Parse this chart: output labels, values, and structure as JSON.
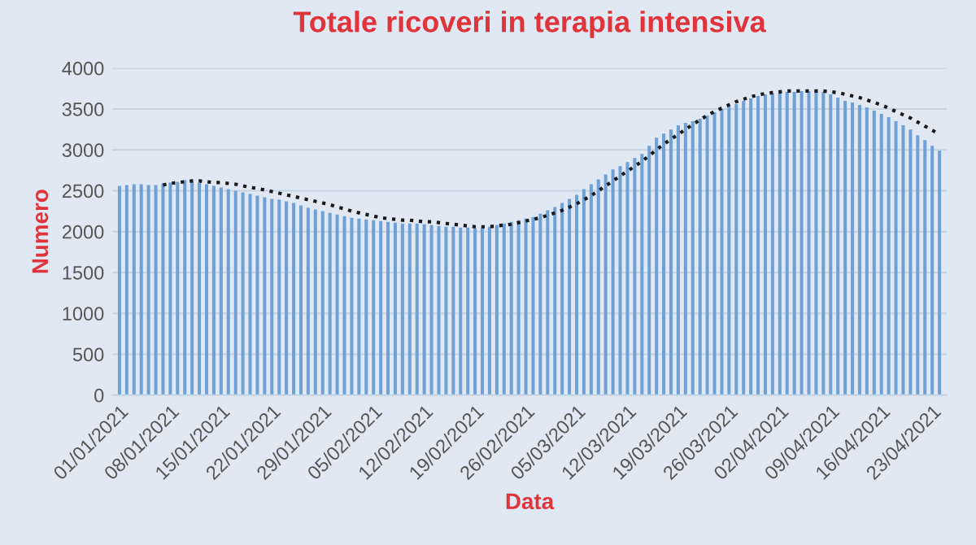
{
  "chart_data": {
    "type": "bar",
    "title": "Totale ricoveri in terapia intensiva",
    "xlabel": "Data",
    "ylabel": "Numero",
    "categories": [
      "01/01/2021",
      null,
      null,
      null,
      null,
      null,
      null,
      "08/01/2021",
      null,
      null,
      null,
      null,
      null,
      null,
      "15/01/2021",
      null,
      null,
      null,
      null,
      null,
      null,
      "22/01/2021",
      null,
      null,
      null,
      null,
      null,
      null,
      "29/01/2021",
      null,
      null,
      null,
      null,
      null,
      null,
      "05/02/2021",
      null,
      null,
      null,
      null,
      null,
      null,
      "12/02/2021",
      null,
      null,
      null,
      null,
      null,
      null,
      "19/02/2021",
      null,
      null,
      null,
      null,
      null,
      null,
      "26/02/2021",
      null,
      null,
      null,
      null,
      null,
      null,
      "05/03/2021",
      null,
      null,
      null,
      null,
      null,
      null,
      "12/03/2021",
      null,
      null,
      null,
      null,
      null,
      null,
      "19/03/2021",
      null,
      null,
      null,
      null,
      null,
      null,
      "26/03/2021",
      null,
      null,
      null,
      null,
      null,
      null,
      "02/04/2021",
      null,
      null,
      null,
      null,
      null,
      null,
      "09/04/2021",
      null,
      null,
      null,
      null,
      null,
      null,
      "16/04/2021",
      null,
      null,
      null,
      null,
      null,
      null,
      "23/04/2021",
      null
    ],
    "series": [
      {
        "color": "#6fa0d6",
        "values": [
          2560,
          2570,
          2580,
          2580,
          2570,
          2570,
          2590,
          2600,
          2610,
          2630,
          2620,
          2600,
          2580,
          2560,
          2540,
          2520,
          2500,
          2480,
          2460,
          2440,
          2420,
          2400,
          2390,
          2370,
          2350,
          2320,
          2290,
          2270,
          2250,
          2230,
          2210,
          2190,
          2170,
          2160,
          2150,
          2140,
          2130,
          2120,
          2110,
          2100,
          2100,
          2100,
          2090,
          2080,
          2070,
          2060,
          2060,
          2050,
          2050,
          2040,
          2050,
          2060,
          2080,
          2100,
          2120,
          2140,
          2160,
          2180,
          2220,
          2260,
          2300,
          2350,
          2400,
          2450,
          2520,
          2580,
          2640,
          2700,
          2760,
          2800,
          2850,
          2900,
          2950,
          3050,
          3150,
          3200,
          3250,
          3300,
          3330,
          3350,
          3380,
          3420,
          3460,
          3500,
          3530,
          3560,
          3600,
          3630,
          3660,
          3680,
          3690,
          3700,
          3710,
          3710,
          3720,
          3720,
          3720,
          3710,
          3680,
          3640,
          3600,
          3580,
          3550,
          3520,
          3480,
          3440,
          3400,
          3350,
          3300,
          3250,
          3180,
          3120,
          3050,
          2990
        ]
      },
      {
        "type": "line",
        "color": "#1a1a1a",
        "line_style": "dotted",
        "values": [
          null,
          null,
          null,
          null,
          null,
          null,
          2570,
          2590,
          2600,
          2610,
          2620,
          2620,
          2610,
          2600,
          2600,
          2590,
          2580,
          2560,
          2540,
          2530,
          2510,
          2490,
          2470,
          2450,
          2430,
          2410,
          2390,
          2370,
          2350,
          2330,
          2300,
          2280,
          2250,
          2230,
          2210,
          2190,
          2170,
          2160,
          2150,
          2140,
          2140,
          2130,
          2120,
          2120,
          2110,
          2100,
          2090,
          2080,
          2070,
          2060,
          2060,
          2060,
          2070,
          2080,
          2090,
          2110,
          2130,
          2150,
          2170,
          2200,
          2230,
          2260,
          2300,
          2340,
          2390,
          2440,
          2500,
          2560,
          2620,
          2680,
          2740,
          2800,
          2860,
          2930,
          3000,
          3070,
          3130,
          3190,
          3250,
          3310,
          3370,
          3420,
          3470,
          3510,
          3550,
          3590,
          3620,
          3650,
          3670,
          3690,
          3700,
          3710,
          3720,
          3720,
          3720,
          3720,
          3720,
          3720,
          3710,
          3700,
          3680,
          3660,
          3640,
          3610,
          3580,
          3550,
          3510,
          3470,
          3430,
          3390,
          3340,
          3290,
          3240,
          3190
        ]
      }
    ],
    "ylim": [
      0,
      4000
    ],
    "yticks": [
      0,
      500,
      1000,
      1500,
      2000,
      2500,
      3000,
      3500,
      4000
    ],
    "grid": "y",
    "legend": false
  }
}
